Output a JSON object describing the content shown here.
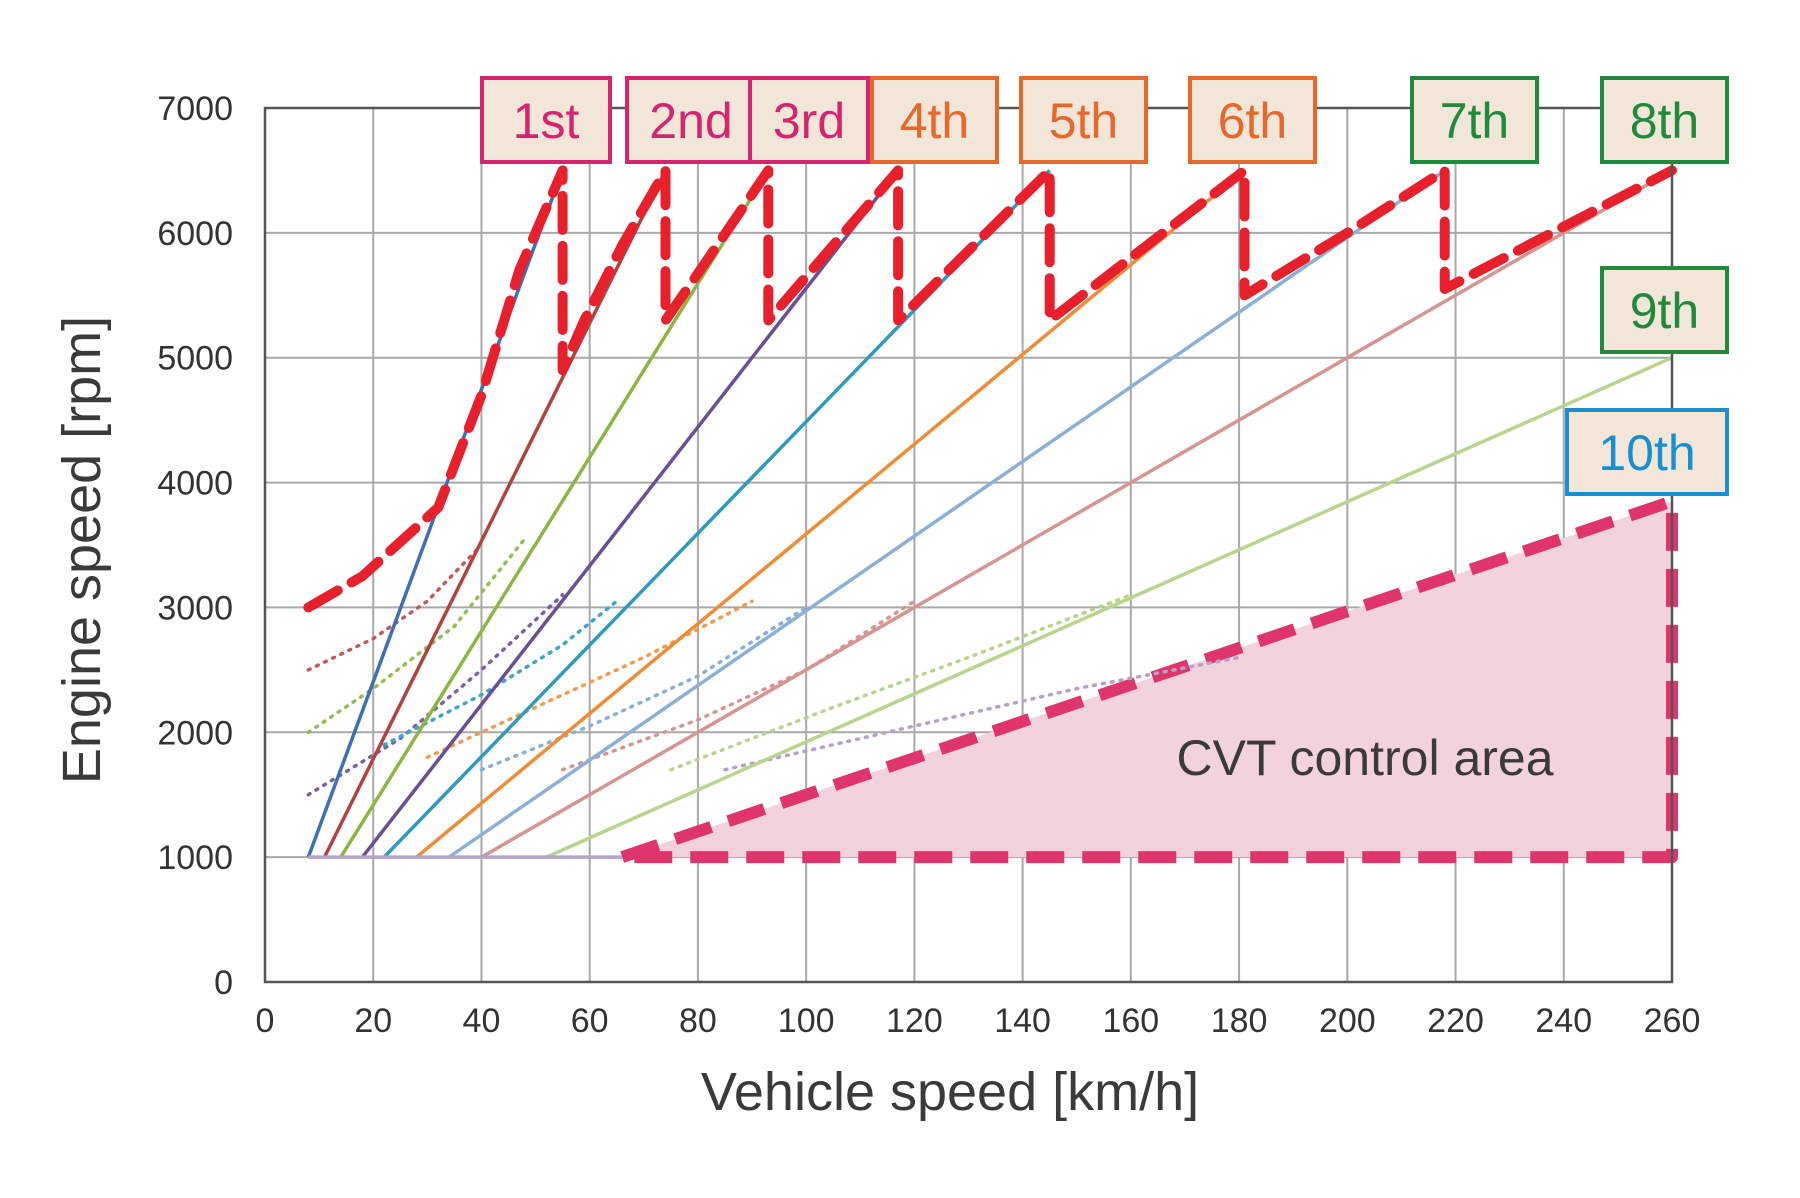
{
  "chart_data": {
    "type": "line",
    "xlabel": "Vehicle speed [km/h]",
    "ylabel": "Engine speed [rpm]",
    "xlim": [
      0,
      260
    ],
    "ylim": [
      0,
      7000
    ],
    "xticks": [
      "0",
      "20",
      "40",
      "60",
      "80",
      "100",
      "120",
      "140",
      "160",
      "180",
      "200",
      "220",
      "240",
      "260"
    ],
    "yticks": [
      "0",
      "1000",
      "2000",
      "3000",
      "4000",
      "5000",
      "6000",
      "7000"
    ],
    "grid": true,
    "gears": [
      {
        "label": "1st",
        "color": "#3f6fb5",
        "x": [
          8,
          55
        ],
        "y": [
          1000,
          6500
        ],
        "label_color": "#d6246e",
        "border_color": "#d6246e"
      },
      {
        "label": "2nd",
        "color": "#b5413e",
        "x": [
          11,
          74
        ],
        "y": [
          1000,
          6500
        ],
        "label_color": "#d6246e",
        "border_color": "#d6246e"
      },
      {
        "label": "3rd",
        "color": "#8db543",
        "x": [
          14,
          93
        ],
        "y": [
          1000,
          6500
        ],
        "label_color": "#d6246e",
        "border_color": "#d6246e"
      },
      {
        "label": "4th",
        "color": "#6a4f96",
        "x": [
          18,
          117
        ],
        "y": [
          1000,
          6500
        ],
        "label_color": "#e8672a",
        "border_color": "#e8672a"
      },
      {
        "label": "5th",
        "color": "#2e9ac0",
        "x": [
          22,
          145
        ],
        "y": [
          1000,
          6500
        ],
        "label_color": "#e8672a",
        "border_color": "#e8672a"
      },
      {
        "label": "6th",
        "color": "#f08c36",
        "x": [
          28,
          181
        ],
        "y": [
          1000,
          6500
        ],
        "label_color": "#e8672a",
        "border_color": "#e8672a"
      },
      {
        "label": "7th",
        "color": "#8ab0d8",
        "x": [
          34,
          218
        ],
        "y": [
          1000,
          6500
        ],
        "label_color": "#1f8a3b",
        "border_color": "#1f8a3b"
      },
      {
        "label": "8th",
        "color": "#d69591",
        "x": [
          40,
          260
        ],
        "y": [
          1000,
          6500
        ],
        "label_color": "#1f8a3b",
        "border_color": "#1f8a3b"
      },
      {
        "label": "9th",
        "color": "#b9d48c",
        "x": [
          52,
          260
        ],
        "y": [
          1000,
          5000
        ],
        "label_color": "#1f8a3b",
        "border_color": "#1f8a3b"
      },
      {
        "label": "10th",
        "color": "#b4a2cc",
        "x": [
          8,
          66
        ],
        "y": [
          1000,
          1000
        ],
        "label_color": "#1a8fd0",
        "border_color": "#1a8fd0"
      }
    ],
    "dotted_curves": [
      {
        "color": "#c15b5b",
        "x": [
          8,
          20,
          30,
          40
        ],
        "y": [
          2500,
          2750,
          3050,
          3500
        ]
      },
      {
        "color": "#93bd55",
        "x": [
          8,
          20,
          35,
          48
        ],
        "y": [
          2000,
          2350,
          2850,
          3550
        ]
      },
      {
        "color": "#7b62a6",
        "x": [
          8,
          25,
          40,
          55
        ],
        "y": [
          1500,
          1950,
          2500,
          3100
        ]
      },
      {
        "color": "#3da5c9",
        "x": [
          22,
          40,
          55,
          65
        ],
        "y": [
          1900,
          2300,
          2700,
          3050
        ]
      },
      {
        "color": "#f29b50",
        "x": [
          30,
          50,
          70,
          90
        ],
        "y": [
          1800,
          2200,
          2600,
          3050
        ]
      },
      {
        "color": "#8ab0d8",
        "x": [
          40,
          60,
          80,
          100
        ],
        "y": [
          1700,
          2050,
          2450,
          3000
        ]
      },
      {
        "color": "#d69591",
        "x": [
          55,
          80,
          100,
          120
        ],
        "y": [
          1700,
          2100,
          2500,
          3050
        ]
      },
      {
        "color": "#b9d48c",
        "x": [
          75,
          105,
          130,
          160
        ],
        "y": [
          1700,
          2200,
          2600,
          3100
        ]
      },
      {
        "color": "#b4a2cc",
        "x": [
          85,
          120,
          150,
          180
        ],
        "y": [
          1700,
          2050,
          2350,
          2600
        ]
      }
    ],
    "shift_schedule": {
      "color": "#e8202c",
      "x": [
        8,
        18,
        32,
        40,
        47,
        55,
        55,
        59,
        66,
        74,
        74,
        82,
        93,
        93,
        105,
        117,
        117,
        131,
        145,
        145,
        160,
        181,
        181,
        200,
        218,
        218,
        240,
        260
      ],
      "y": [
        3000,
        3250,
        3800,
        4700,
        5700,
        6500,
        4900,
        5300,
        5900,
        6500,
        5300,
        5800,
        6500,
        5300,
        5900,
        6500,
        5300,
        5900,
        6500,
        5300,
        5800,
        6500,
        5500,
        6000,
        6500,
        5550,
        6050,
        6500
      ]
    },
    "cvt_area": {
      "label": "CVT control area",
      "color": "#e0356b",
      "fill": "#f2d3dd",
      "x": [
        66,
        260,
        260
      ],
      "y": [
        1000,
        3850,
        1000
      ]
    }
  }
}
